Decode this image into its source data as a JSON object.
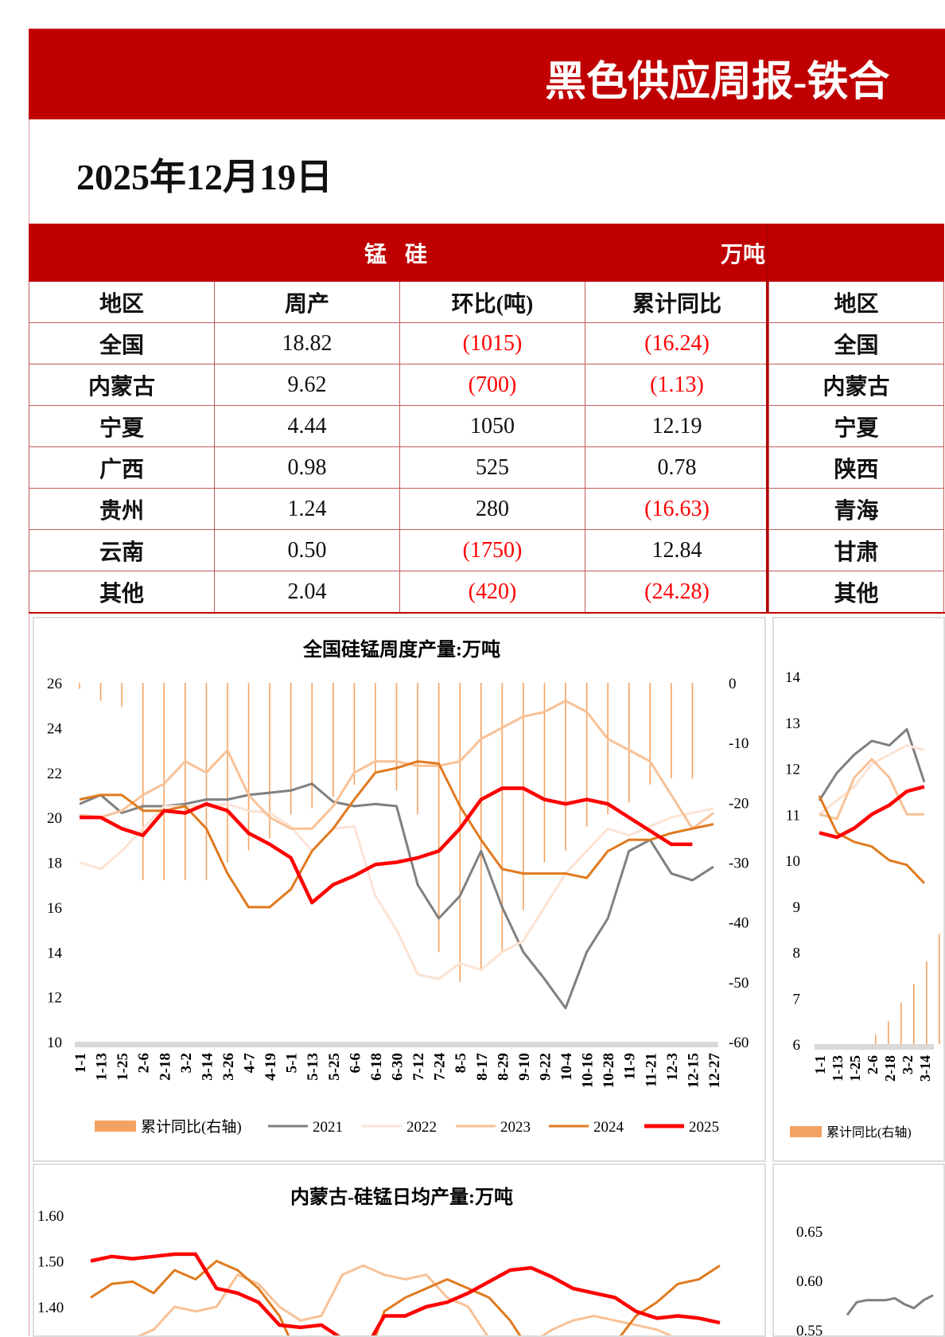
{
  "header": {
    "title": "黑色供应周报-铁合",
    "date": "2025年12月19日"
  },
  "colors": {
    "brand_red": "#c00000",
    "negative": "#ff0000",
    "y2021": "#808080",
    "y2022": "#fbe3d4",
    "y2023": "#f8c196",
    "y2024": "#e07a1f",
    "y2025": "#ff0000",
    "bars": "#f4a261"
  },
  "table_left": {
    "title": "锰 硅",
    "unit": "万吨",
    "columns": [
      "地区",
      "周产",
      "环比(吨)",
      "累计同比"
    ],
    "rows": [
      [
        "全国",
        "18.82",
        "(1015)",
        "(16.24)"
      ],
      [
        "内蒙古",
        "9.62",
        "(700)",
        "(1.13)"
      ],
      [
        "宁夏",
        "4.44",
        "1050",
        "12.19"
      ],
      [
        "广西",
        "0.98",
        "525",
        "0.78"
      ],
      [
        "贵州",
        "1.24",
        "280",
        "(16.63)"
      ],
      [
        "云南",
        "0.50",
        "(1750)",
        "12.84"
      ],
      [
        "其他",
        "2.04",
        "(420)",
        "(24.28)"
      ]
    ]
  },
  "table_right": {
    "columns": [
      "地区"
    ],
    "rows": [
      [
        "全国"
      ],
      [
        "内蒙古"
      ],
      [
        "宁夏"
      ],
      [
        "陕西"
      ],
      [
        "青海"
      ],
      [
        "甘肃"
      ],
      [
        "其他"
      ]
    ]
  },
  "chart_data": [
    {
      "type": "line",
      "title": "全国硅锰周度产量:万吨",
      "categories": [
        "1-1",
        "1-13",
        "1-25",
        "2-6",
        "2-18",
        "3-2",
        "3-14",
        "3-26",
        "4-7",
        "4-19",
        "5-1",
        "5-13",
        "5-25",
        "6-6",
        "6-18",
        "6-30",
        "7-12",
        "7-24",
        "8-5",
        "8-17",
        "8-29",
        "9-10",
        "9-22",
        "10-4",
        "10-16",
        "10-28",
        "11-9",
        "11-21",
        "12-3",
        "12-15",
        "12-27"
      ],
      "ylim": [
        10,
        26
      ],
      "yticks": [
        "26",
        "24",
        "22",
        "20",
        "18",
        "16",
        "14",
        "12",
        "10"
      ],
      "y2lim": [
        -60,
        0
      ],
      "y2ticks": [
        "0",
        "-10",
        "-20",
        "-30",
        "-40",
        "-50",
        "-60"
      ],
      "legend": "bottom",
      "bar_series": {
        "name": "累计同比(右轴)",
        "axis": "right",
        "values": [
          -1,
          -3,
          -4,
          -33,
          -33,
          -33,
          -33,
          -30,
          -28,
          -26,
          -22,
          -21,
          -19,
          -17,
          -15,
          -18,
          -22,
          -45,
          -50,
          -48,
          -45,
          -38,
          -30,
          -28,
          -24,
          -22,
          -20,
          -17,
          -16,
          -16,
          null
        ]
      },
      "series": [
        {
          "name": "2021",
          "values": [
            20.6,
            21,
            20.2,
            20.5,
            20.5,
            20.6,
            20.8,
            20.8,
            21,
            21.1,
            21.2,
            21.5,
            20.7,
            20.5,
            20.6,
            20.5,
            17,
            15.5,
            16.5,
            18.5,
            16,
            14,
            12.8,
            11.5,
            14,
            15.5,
            18.5,
            19,
            17.5,
            17.2,
            17.8
          ]
        },
        {
          "name": "2022",
          "values": [
            18,
            17.7,
            18.5,
            19.5,
            20.5,
            20.5,
            20.5,
            20.6,
            20.3,
            20.2,
            19.6,
            18.5,
            19.5,
            19.6,
            16.5,
            15,
            13,
            12.8,
            13.5,
            13.2,
            14,
            14.5,
            16,
            17.5,
            18.5,
            19.5,
            19.2,
            19.6,
            20,
            20.2,
            20.4
          ]
        },
        {
          "name": "2023",
          "values": [
            20.1,
            20,
            20.3,
            21,
            21.5,
            22.5,
            22,
            23,
            21,
            20,
            19.5,
            19.5,
            20.5,
            22,
            22.5,
            22.5,
            22.3,
            22.3,
            22.5,
            23.5,
            24,
            24.5,
            24.7,
            25.2,
            24.7,
            23.5,
            23,
            22.5,
            21,
            19.5,
            20.2
          ]
        },
        {
          "name": "2024",
          "values": [
            20.8,
            21,
            21,
            20.3,
            20.3,
            20.5,
            19.5,
            17.5,
            16,
            16,
            16.8,
            18.5,
            19.5,
            20.8,
            22,
            22.2,
            22.5,
            22.4,
            20.5,
            19,
            17.7,
            17.5,
            17.5,
            17.5,
            17.3,
            18.5,
            19,
            19,
            19.3,
            19.5,
            19.7
          ]
        },
        {
          "name": "2025",
          "values": [
            20,
            20,
            19.5,
            19.2,
            20.3,
            20.2,
            20.6,
            20.3,
            19.3,
            18.8,
            18.2,
            16.2,
            17,
            17.4,
            17.9,
            18,
            18.2,
            18.5,
            19.5,
            20.8,
            21.3,
            21.3,
            20.8,
            20.6,
            20.8,
            20.6,
            20,
            19.4,
            18.8,
            18.8,
            null
          ]
        }
      ]
    },
    {
      "type": "line",
      "categories": [
        "1-1",
        "1-13",
        "1-25",
        "2-6",
        "2-18",
        "3-2",
        "3-14"
      ],
      "ylim": [
        6,
        14
      ],
      "yticks": [
        "14",
        "13",
        "12",
        "11",
        "10",
        "9",
        "8",
        "7",
        "6"
      ],
      "legend": "bottom",
      "bar_series": {
        "name": "累计同比(右轴)"
      },
      "series": [
        {
          "values": [
            11.3,
            11.9,
            12.3,
            12.6,
            12.5,
            12.85,
            11.7
          ]
        },
        {
          "values": [
            11.0,
            11.3,
            11.6,
            12.1,
            12.3,
            12.5,
            12.4
          ]
        },
        {
          "values": [
            11.0,
            10.9,
            11.8,
            12.2,
            11.8,
            11.0,
            11.0
          ]
        },
        {
          "values": [
            11.4,
            10.6,
            10.4,
            10.3,
            10.0,
            9.9,
            9.5
          ]
        },
        {
          "values": [
            10.6,
            10.5,
            10.7,
            11.0,
            11.2,
            11.5,
            11.6
          ]
        }
      ]
    },
    {
      "type": "line",
      "title": "内蒙古-硅锰日均产量:万吨",
      "yticks": [
        "1.60",
        "1.50",
        "1.40"
      ],
      "series": [
        {
          "values": [
            1.3,
            1.31,
            1.33,
            1.35,
            1.4,
            1.39,
            1.4,
            1.47,
            1.45,
            1.4,
            1.37,
            1.38,
            1.47,
            1.49,
            1.47,
            1.46,
            1.47,
            1.42,
            1.4,
            1.33,
            1.3,
            1.32,
            1.35,
            1.37,
            1.38,
            1.37,
            1.36,
            1.35,
            1.33,
            1.32,
            1.33
          ]
        },
        {
          "values": [
            1.42,
            1.45,
            1.455,
            1.43,
            1.48,
            1.46,
            1.5,
            1.48,
            1.44,
            1.38,
            1.28,
            1.25,
            1.24,
            1.26,
            1.39,
            1.42,
            1.44,
            1.46,
            1.44,
            1.42,
            1.37,
            1.3,
            1.27,
            1.25,
            1.33,
            1.32,
            1.38,
            1.41,
            1.45,
            1.46,
            1.49
          ]
        },
        {
          "values": [
            1.5,
            1.51,
            1.505,
            1.51,
            1.515,
            1.515,
            1.44,
            1.43,
            1.41,
            1.36,
            1.355,
            1.36,
            1.33,
            1.3,
            1.38,
            1.38,
            1.4,
            1.41,
            1.43,
            1.455,
            1.48,
            1.485,
            1.465,
            1.44,
            1.43,
            1.42,
            1.39,
            1.375,
            1.38,
            1.375,
            1.365
          ]
        }
      ]
    },
    {
      "type": "line",
      "yticks": [
        "0.65",
        "0.60",
        "0.55"
      ],
      "series": [
        {
          "values": [
            0.565,
            0.578,
            0.58,
            0.58,
            0.58,
            0.582,
            0.576,
            0.572,
            0.58,
            0.585
          ]
        }
      ]
    }
  ]
}
